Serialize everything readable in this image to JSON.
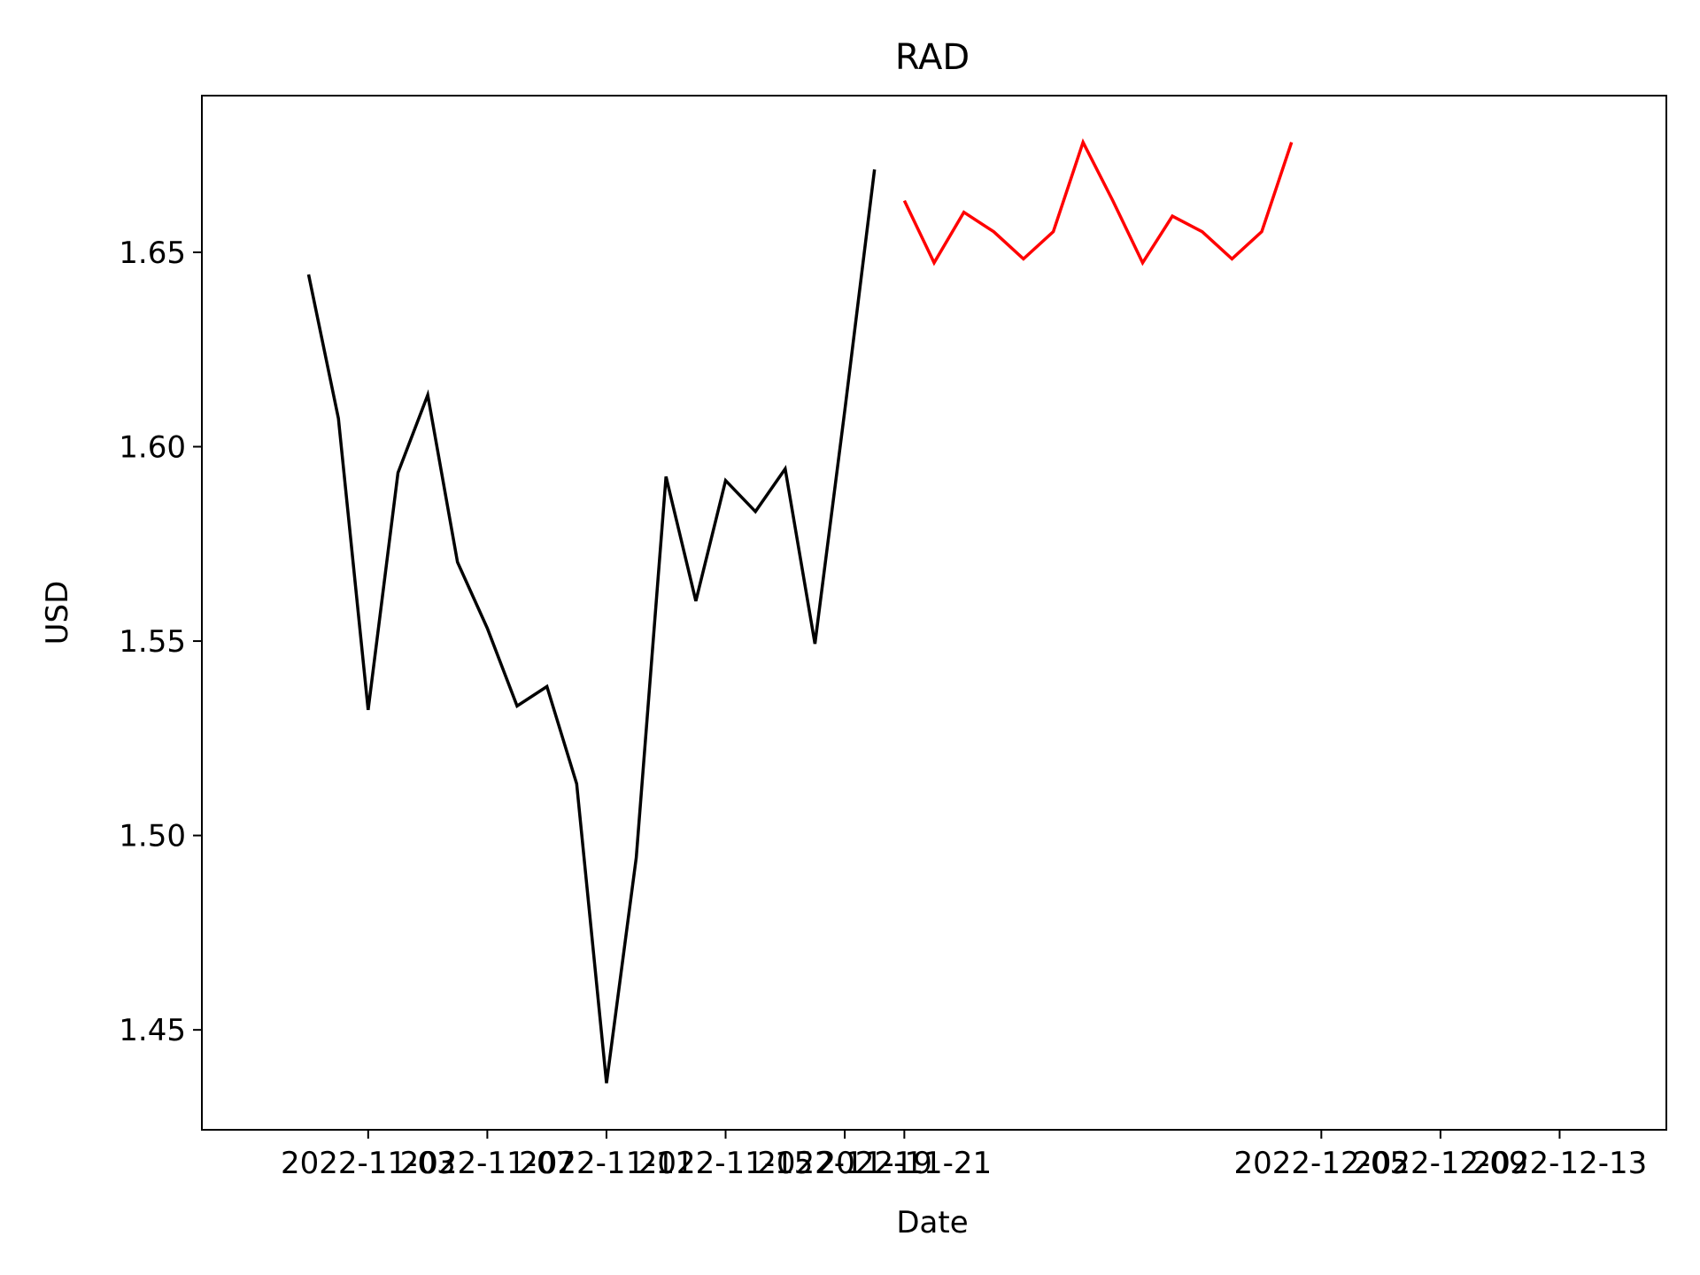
{
  "chart_data": {
    "type": "line",
    "title": "RAD",
    "xlabel": "Date",
    "ylabel": "USD",
    "xlim": [
      "2022-10-28T10:00:00",
      "2022-12-16T14:00:00"
    ],
    "ylim": [
      1.4243,
      1.6903
    ],
    "xticks": [
      "2022-11-03",
      "2022-11-07",
      "2022-11-11",
      "2022-11-15",
      "2022-11-19",
      "2022-11-21",
      "2022-12-05",
      "2022-12-09",
      "2022-12-13"
    ],
    "tick_label_text": [
      "2022-11-03",
      "2022-11-07",
      "2022-11-11",
      "2022-11-15",
      "2022-11-19",
      "2022-11-21",
      "2022-12-05",
      "2022-12-09",
      "2022-12-13"
    ],
    "yticks": [
      "1.45",
      "1.50",
      "1.55",
      "1.60",
      "1.65"
    ],
    "grid": false,
    "legend": "none",
    "series": [
      {
        "color": "#000000",
        "x": [
          "2022-11-01",
          "2022-11-02",
          "2022-11-03",
          "2022-11-04",
          "2022-11-05",
          "2022-11-06",
          "2022-11-07",
          "2022-11-08",
          "2022-11-09",
          "2022-11-10",
          "2022-11-11",
          "2022-11-12",
          "2022-11-13",
          "2022-11-14",
          "2022-11-15",
          "2022-11-16",
          "2022-11-17",
          "2022-11-18",
          "2022-11-19",
          "2022-11-20"
        ],
        "y": [
          1.6443,
          1.6073,
          1.5323,
          1.5933,
          1.6133,
          1.5703,
          1.5533,
          1.5333,
          1.5383,
          1.5133,
          1.4363,
          1.4943,
          1.5923,
          1.5603,
          1.5913,
          1.5833,
          1.5943,
          1.5493,
          1.6093,
          1.6713
        ]
      },
      {
        "color": "#ff0000",
        "x": [
          "2022-11-21",
          "2022-11-22",
          "2022-11-23",
          "2022-11-24",
          "2022-11-25",
          "2022-11-26",
          "2022-11-27",
          "2022-11-28",
          "2022-11-29",
          "2022-11-30",
          "2022-12-01",
          "2022-12-02",
          "2022-12-03",
          "2022-12-04"
        ],
        "y": [
          1.6633,
          1.6473,
          1.6603,
          1.6553,
          1.6483,
          1.6553,
          1.6783,
          1.6633,
          1.6473,
          1.6593,
          1.6553,
          1.6483,
          1.6553,
          1.6783
        ]
      }
    ]
  }
}
